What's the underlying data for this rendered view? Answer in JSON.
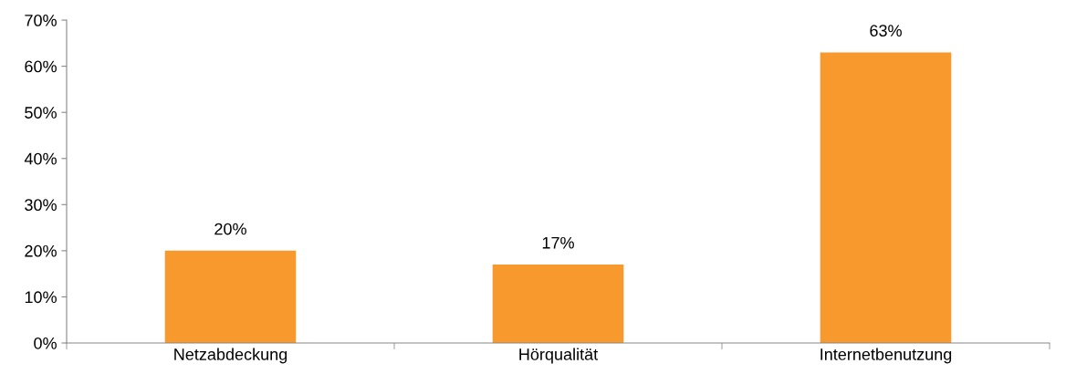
{
  "chart_data": {
    "type": "bar",
    "categories": [
      "Netzabdeckung",
      "Hörqualität",
      "Internetbenutzung"
    ],
    "values": [
      20,
      17,
      63
    ],
    "value_labels": [
      "20%",
      "17%",
      "63%"
    ],
    "color": "#f7992c",
    "ylim": [
      0,
      70
    ],
    "yticks": [
      {
        "value": 0,
        "label": "0%"
      },
      {
        "value": 10,
        "label": "10%"
      },
      {
        "value": 20,
        "label": "20%"
      },
      {
        "value": 30,
        "label": "30%"
      },
      {
        "value": 40,
        "label": "40%"
      },
      {
        "value": 50,
        "label": "50%"
      },
      {
        "value": 60,
        "label": "60%"
      },
      {
        "value": 70,
        "label": "70%"
      }
    ],
    "grid": false,
    "legend": false
  }
}
